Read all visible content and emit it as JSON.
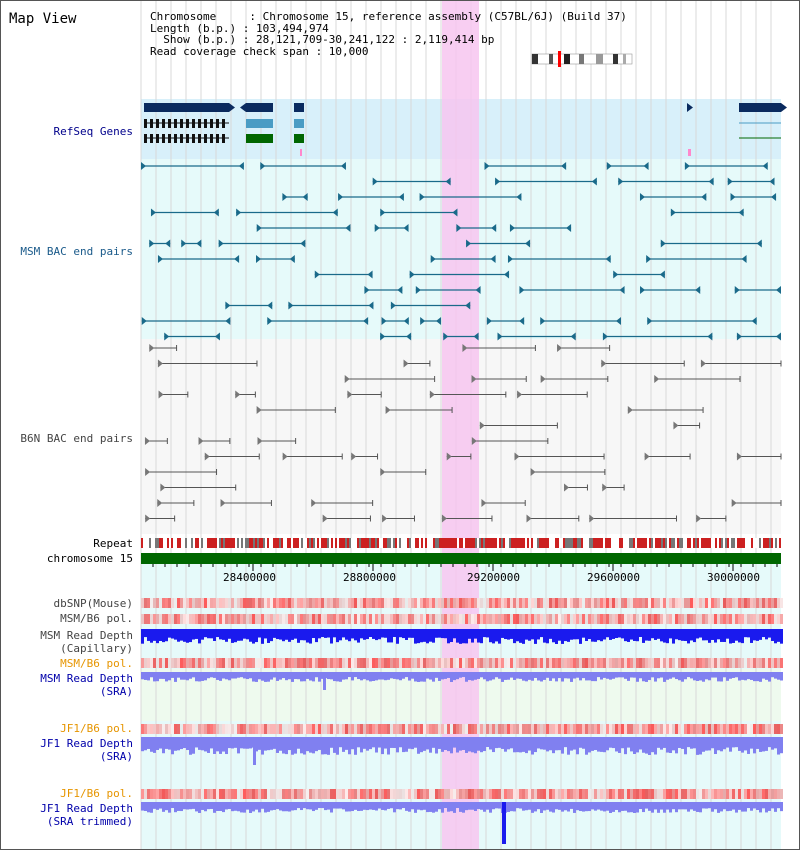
{
  "title": "Map View",
  "header": {
    "line1": "Chromosome     : Chromosome 15, reference assembly (C57BL/6J) (Build 37)",
    "line2": "Length (b.p.) : 103,494,974",
    "line3": "  Show (b.p.) : 28,121,709-30,241,122 : 2,119,414 bp",
    "line4": "Read coverage check span : 10,000"
  },
  "tracks": {
    "refseq": "RefSeq Genes",
    "msm_bac": "MSM BAC end pairs",
    "b6n_bac": "B6N BAC end pairs",
    "repeat": "Repeat",
    "chromosome": "chromosome 15",
    "dbsnp": "dbSNP(Mouse)",
    "msm_b6_pol_1": "MSM/B6 pol.",
    "msm_read_depth_cap": [
      "MSM Read Depth",
      "(Capillary)"
    ],
    "msm_b6_pol_2": "MSM/B6 pol.",
    "msm_read_depth_sra": [
      "MSM Read Depth",
      "(SRA)"
    ],
    "jf1_b6_pol_1": "JF1/B6 pol.",
    "jf1_read_depth_sra": [
      "JF1 Read Depth",
      "(SRA)"
    ],
    "jf1_b6_pol_2": "JF1/B6 pol.",
    "jf1_read_depth_trim": [
      "JF1 Read Depth",
      "(SRA trimmed)"
    ]
  },
  "axis_ticks": [
    "28400000",
    "28800000",
    "29200000",
    "29600000",
    "30000000"
  ],
  "colors": {
    "gene_dark": "#0a2a5e",
    "gene_mid": "#4a9cc4",
    "gene_green": "#006600",
    "msm_pair": "#1a6a8a",
    "b6n_pair": "#555555",
    "highlight": "#f7c6f0",
    "depth_dark": "#1a1aee",
    "depth_light": "#8080f0",
    "pol_red": "#e04040",
    "chrom_green": "#006600"
  }
}
